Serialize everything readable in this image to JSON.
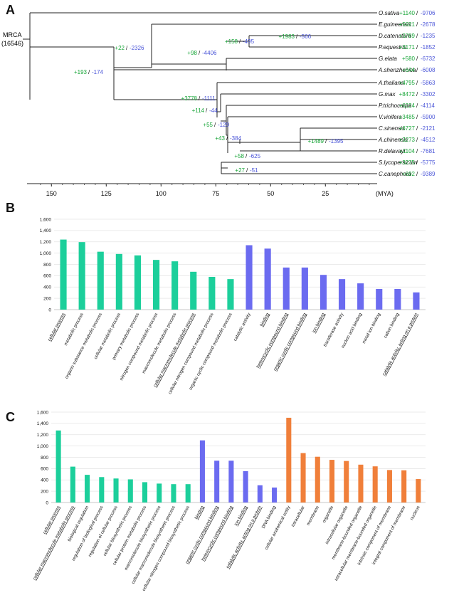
{
  "panels": {
    "a": "A",
    "b": "B",
    "c": "C"
  },
  "tree": {
    "root_label": "MRCA",
    "root_count": "(16546)",
    "axis_unit": "(MYA)",
    "axis_ticks": [
      150,
      125,
      100,
      75,
      50,
      25
    ],
    "species": [
      {
        "name": "O.sativa",
        "gain": "+1140",
        "loss": "-9706"
      },
      {
        "name": "E.guineensis",
        "gain": "+5921",
        "loss": "-2678"
      },
      {
        "name": "D.catenatum",
        "gain": "+3789",
        "loss": "-1235"
      },
      {
        "name": "P.equestris",
        "gain": "+3171",
        "loss": "-1852"
      },
      {
        "name": "G.elata",
        "gain": "+580",
        "loss": "-6732"
      },
      {
        "name": "A.shenzhenica",
        "gain": "+644",
        "loss": "-6008"
      },
      {
        "name": "A.thaliana",
        "gain": "+4795",
        "loss": "-5863"
      },
      {
        "name": "G.max",
        "gain": "+8472",
        "loss": "-3302"
      },
      {
        "name": "P.trichocarpa",
        "gain": "+6224",
        "loss": "-4114"
      },
      {
        "name": "V.vinifera",
        "gain": "+3485",
        "loss": "-5900"
      },
      {
        "name": "C.sinensis",
        "gain": "+6727",
        "loss": "-2121"
      },
      {
        "name": "A.chinensis",
        "gain": "+3273",
        "loss": "-4512"
      },
      {
        "name": "R.delavayi",
        "gain": "+1104",
        "loss": "-7681"
      },
      {
        "name": "S.lycopersicum",
        "gain": "+3275",
        "loss": "-5775"
      },
      {
        "name": "C.canephora",
        "gain": "+692",
        "loss": "-9389"
      }
    ],
    "nodes": [
      {
        "gain": "+193",
        "loss": "-174"
      },
      {
        "gain": "+22",
        "loss": "-2326"
      },
      {
        "gain": "+98",
        "loss": "-4406"
      },
      {
        "gain": "+158",
        "loss": "-495"
      },
      {
        "gain": "+1983",
        "loss": "-566"
      },
      {
        "gain": "+3778",
        "loss": "-1111"
      },
      {
        "gain": "+114",
        "loss": "-44"
      },
      {
        "gain": "+55",
        "loss": "-129"
      },
      {
        "gain": "+43",
        "loss": "-384"
      },
      {
        "gain": "+1489",
        "loss": "-1395"
      },
      {
        "gain": "+58",
        "loss": "-625"
      },
      {
        "gain": "+27",
        "loss": "-51"
      }
    ]
  },
  "chart_data": [
    {
      "type": "bar",
      "panel": "B",
      "ylim": [
        0,
        1600
      ],
      "yticks": [
        "0",
        "200",
        "400",
        "600",
        "800",
        "1,000",
        "1,200",
        "1,400",
        "1,600"
      ],
      "series_colors": {
        "biological process": "#1ccf9b",
        "molecular function": "#6b6bf0"
      },
      "categories": [
        {
          "label": "cellular process",
          "value": 1240,
          "group": "biological process",
          "underline": true
        },
        {
          "label": "metabolic process",
          "value": 1195,
          "group": "biological process",
          "underline": false
        },
        {
          "label": "organic substance metabolic process",
          "value": 1025,
          "group": "biological process",
          "underline": false
        },
        {
          "label": "cellular metabolic process",
          "value": 985,
          "group": "biological process",
          "underline": false
        },
        {
          "label": "primary metabolic process",
          "value": 960,
          "group": "biological process",
          "underline": false
        },
        {
          "label": "nitrogen compound metabolic process",
          "value": 880,
          "group": "biological process",
          "underline": false
        },
        {
          "label": "macromolecule metabolic process",
          "value": 855,
          "group": "biological process",
          "underline": false
        },
        {
          "label": "cellular macromolecule metabolic process",
          "value": 670,
          "group": "biological process",
          "underline": true
        },
        {
          "label": "cellular nitrogen compound metabolic process",
          "value": 580,
          "group": "biological process",
          "underline": false
        },
        {
          "label": "organic cyclic compound metabolic process",
          "value": 540,
          "group": "biological process",
          "underline": false
        },
        {
          "label": "catalytic activity",
          "value": 1140,
          "group": "molecular function",
          "underline": false
        },
        {
          "label": "binding",
          "value": 1080,
          "group": "molecular function",
          "underline": true
        },
        {
          "label": "heterocyclic compound binding",
          "value": 745,
          "group": "molecular function",
          "underline": true
        },
        {
          "label": "organic cyclic compound binding",
          "value": 745,
          "group": "molecular function",
          "underline": true
        },
        {
          "label": "ion binding",
          "value": 615,
          "group": "molecular function",
          "underline": true
        },
        {
          "label": "transferase activity",
          "value": 540,
          "group": "molecular function",
          "underline": false
        },
        {
          "label": "nucleic acid binding",
          "value": 465,
          "group": "molecular function",
          "underline": false
        },
        {
          "label": "metal ion binding",
          "value": 365,
          "group": "molecular function",
          "underline": false
        },
        {
          "label": "cation binding",
          "value": 365,
          "group": "molecular function",
          "underline": false
        },
        {
          "label": "catalytic activity, acting on a protein",
          "value": 305,
          "group": "molecular function",
          "underline": true
        }
      ]
    },
    {
      "type": "bar",
      "panel": "C",
      "ylim": [
        0,
        1600
      ],
      "yticks": [
        "0",
        "200",
        "400",
        "600",
        "800",
        "1,000",
        "1,200",
        "1,400",
        "1,600"
      ],
      "series_colors": {
        "biological process": "#1ccf9b",
        "molecular function": "#6b6bf0",
        "cellular component": "#f07f3a"
      },
      "categories": [
        {
          "label": "cellular process",
          "value": 1275,
          "group": "biological process",
          "underline": true
        },
        {
          "label": "cellular macromolecule metabolic process",
          "value": 635,
          "group": "biological process",
          "underline": true
        },
        {
          "label": "biological regulation",
          "value": 490,
          "group": "biological process",
          "underline": false
        },
        {
          "label": "regulation of biological process",
          "value": 450,
          "group": "biological process",
          "underline": false
        },
        {
          "label": "regulation of cellular process",
          "value": 425,
          "group": "biological process",
          "underline": false
        },
        {
          "label": "cellular biosynthetic process",
          "value": 410,
          "group": "biological process",
          "underline": false
        },
        {
          "label": "cellular protein metabolic process",
          "value": 360,
          "group": "biological process",
          "underline": false
        },
        {
          "label": "macromolecule biosynthetic process",
          "value": 335,
          "group": "biological process",
          "underline": false
        },
        {
          "label": "cellular macromolecule biosynthetic process",
          "value": 325,
          "group": "biological process",
          "underline": false
        },
        {
          "label": "cellular nitrogen compound biosynthetic process",
          "value": 325,
          "group": "biological process",
          "underline": false
        },
        {
          "label": "binding",
          "value": 1100,
          "group": "molecular function",
          "underline": true
        },
        {
          "label": "organic cyclic compound binding",
          "value": 740,
          "group": "molecular function",
          "underline": true
        },
        {
          "label": "heterocyclic compound binding",
          "value": 740,
          "group": "molecular function",
          "underline": true
        },
        {
          "label": "ion binding",
          "value": 555,
          "group": "molecular function",
          "underline": true
        },
        {
          "label": "catalytic activity, acting on a protein",
          "value": 305,
          "group": "molecular function",
          "underline": true
        },
        {
          "label": "DNA binding",
          "value": 265,
          "group": "molecular function",
          "underline": false
        },
        {
          "label": "cellular anatomical entity",
          "value": 1500,
          "group": "cellular component",
          "underline": false
        },
        {
          "label": "intracellular",
          "value": 875,
          "group": "cellular component",
          "underline": false
        },
        {
          "label": "membrane",
          "value": 810,
          "group": "cellular component",
          "underline": false
        },
        {
          "label": "organelle",
          "value": 755,
          "group": "cellular component",
          "underline": false
        },
        {
          "label": "intracellular organelle",
          "value": 735,
          "group": "cellular component",
          "underline": false
        },
        {
          "label": "membrane-bounded organelle",
          "value": 670,
          "group": "cellular component",
          "underline": false
        },
        {
          "label": "intracellular membrane-bounded organelle",
          "value": 640,
          "group": "cellular component",
          "underline": false
        },
        {
          "label": "intrinsic component of membrane",
          "value": 575,
          "group": "cellular component",
          "underline": false
        },
        {
          "label": "integral component of membrane",
          "value": 570,
          "group": "cellular component",
          "underline": false
        },
        {
          "label": "nucleus",
          "value": 415,
          "group": "cellular component",
          "underline": false
        }
      ]
    }
  ]
}
